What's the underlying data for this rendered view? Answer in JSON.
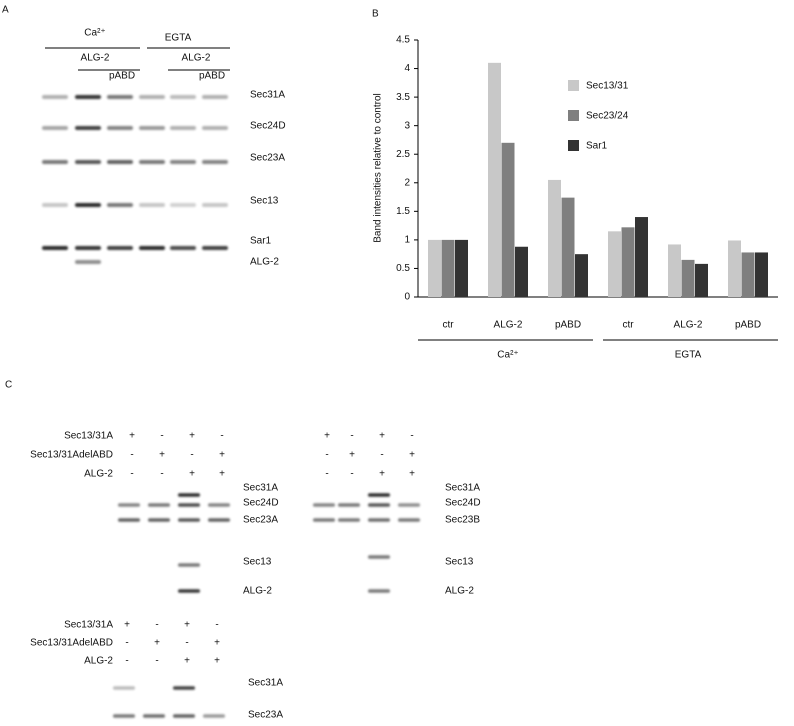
{
  "panel_a": {
    "label": "A",
    "group_labels": [
      "Ca²⁺",
      "EGTA"
    ],
    "sub_labels": [
      "ALG-2",
      "pABD",
      "ALG-2",
      "pABD"
    ],
    "band_labels": [
      "Sec31A",
      "Sec24D",
      "Sec23A",
      "Sec13",
      "Sar1",
      "ALG-2"
    ]
  },
  "chart_data": {
    "type": "bar",
    "label": "B",
    "y_label": "Band intensities relative to control",
    "categories": [
      "ctr",
      "ALG-2",
      "pABD",
      "ctr",
      "ALG-2",
      "pABD"
    ],
    "group_labels": [
      "Ca²⁺",
      "EGTA"
    ],
    "series": [
      {
        "name": "Sec13/31",
        "color": "#c8c8c8",
        "values": [
          1,
          4.1,
          2.05,
          1.15,
          0.92,
          0.99
        ]
      },
      {
        "name": "Sec23/24",
        "color": "#7f7f7f",
        "values": [
          1,
          2.7,
          1.74,
          1.22,
          0.65,
          0.78
        ]
      },
      {
        "name": "Sar1",
        "color": "#333333",
        "values": [
          1,
          0.88,
          0.75,
          1.4,
          0.58,
          0.78
        ]
      }
    ],
    "ylim": [
      0,
      4.5
    ],
    "yticks": [
      0,
      0.5,
      1,
      1.5,
      2,
      2.5,
      3,
      3.5,
      4,
      4.5
    ],
    "grid": false
  },
  "panel_c": {
    "label": "C",
    "blots": [
      {
        "row_labels": [
          "Sec13/31A",
          "Sec13/31AdelABD",
          "ALG-2"
        ],
        "signs": [
          [
            "+",
            "-",
            "+",
            "-"
          ],
          [
            "-",
            "+",
            "-",
            "+"
          ],
          [
            "-",
            "-",
            "+",
            "+"
          ]
        ],
        "band_labels": [
          "Sec31A",
          "Sec24D",
          "Sec23A",
          "Sec13",
          "ALG-2"
        ]
      },
      {
        "signs": [
          [
            "+",
            "-",
            "+",
            "-"
          ],
          [
            "-",
            "+",
            "-",
            "+"
          ],
          [
            "-",
            "-",
            "+",
            "+"
          ]
        ],
        "band_labels": [
          "Sec31A",
          "Sec24D",
          "Sec23B",
          "Sec13",
          "ALG-2"
        ]
      },
      {
        "row_labels": [
          "Sec13/31A",
          "Sec13/31AdelABD",
          "ALG-2"
        ],
        "signs": [
          [
            "+",
            "-",
            "+",
            "-"
          ],
          [
            "-",
            "+",
            "-",
            "+"
          ],
          [
            "-",
            "-",
            "+",
            "+"
          ]
        ],
        "band_labels": [
          "Sec31A",
          "Sec23A"
        ]
      }
    ]
  }
}
